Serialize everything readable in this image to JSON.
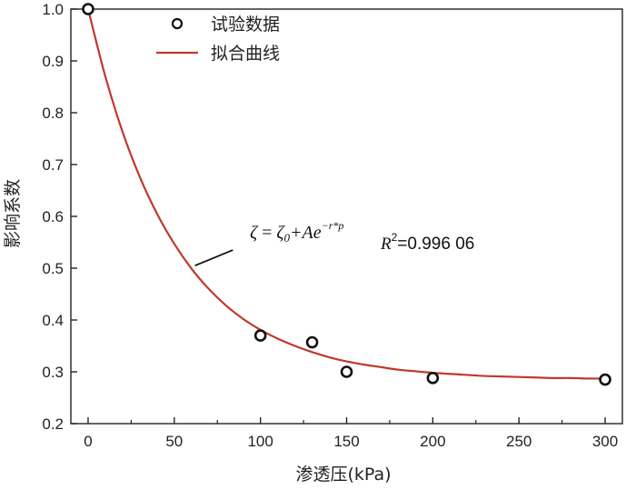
{
  "chart_data": {
    "type": "scatter",
    "title": "",
    "xlabel": "渗透压(kPa)",
    "ylabel": "影响系数",
    "xlim": [
      -10,
      310
    ],
    "ylim": [
      0.2,
      1.0
    ],
    "xticks": [
      0,
      50,
      100,
      150,
      200,
      250,
      300
    ],
    "yticks": [
      0.2,
      0.3,
      0.4,
      0.5,
      0.6,
      0.7,
      0.8,
      0.9,
      1.0
    ],
    "xtick_labels": [
      "0",
      "50",
      "100",
      "150",
      "200",
      "250",
      "300"
    ],
    "ytick_labels": [
      "0.2",
      "0.3",
      "0.4",
      "0.5",
      "0.6",
      "0.7",
      "0.8",
      "0.9",
      "1.0"
    ],
    "grid": false,
    "legend_position": "top-center",
    "series": [
      {
        "name": "试验数据",
        "kind": "scatter",
        "color": "#111111",
        "x": [
          0,
          100,
          130,
          150,
          200,
          300
        ],
        "y": [
          1.0,
          0.37,
          0.357,
          0.3,
          0.288,
          0.285
        ]
      },
      {
        "name": "拟合曲线",
        "kind": "line",
        "color": "#c0392b",
        "x": [
          0,
          10,
          20,
          30,
          40,
          50,
          60,
          70,
          80,
          90,
          100,
          110,
          120,
          130,
          140,
          150,
          160,
          170,
          180,
          190,
          200,
          210,
          220,
          230,
          240,
          250,
          260,
          270,
          280,
          290,
          300
        ],
        "y": [
          1.0,
          0.87,
          0.763,
          0.676,
          0.605,
          0.547,
          0.499,
          0.46,
          0.428,
          0.402,
          0.381,
          0.364,
          0.35,
          0.338,
          0.328,
          0.32,
          0.314,
          0.309,
          0.304,
          0.301,
          0.298,
          0.296,
          0.294,
          0.292,
          0.291,
          0.29,
          0.289,
          0.288,
          0.288,
          0.287,
          0.287
        ]
      }
    ],
    "annotation": {
      "equation": {
        "lhs": "ζ",
        "eq": " = ",
        "zeta": "ζ",
        "sub0": "0",
        "plusA": "+Ae",
        "exponent": "−r*p"
      },
      "r2": {
        "R": "R",
        "sup": "2",
        "value": "=0.996 06"
      },
      "leader_from": [
        62,
        0.505
      ],
      "leader_to": [
        84,
        0.535
      ]
    }
  }
}
